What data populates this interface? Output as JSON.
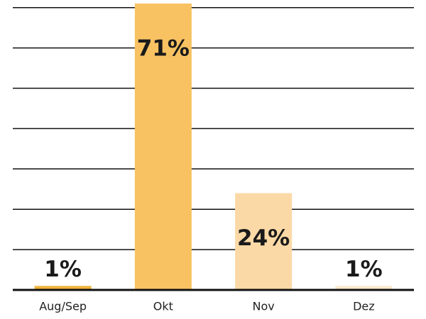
{
  "chart_data": {
    "type": "bar",
    "categories": [
      "Aug/Sep",
      "Okt",
      "Nov",
      "Dez"
    ],
    "values": [
      1,
      71,
      24,
      1
    ],
    "value_labels": [
      "1%",
      "71%",
      "24%",
      "1%"
    ],
    "colors": [
      "#f0b43c",
      "#f8c262",
      "#fbd9a6",
      "#fce9cd"
    ],
    "ylim": [
      0,
      71
    ],
    "gridlines": [
      10,
      20,
      30,
      40,
      50,
      60,
      70
    ],
    "grid": true
  }
}
